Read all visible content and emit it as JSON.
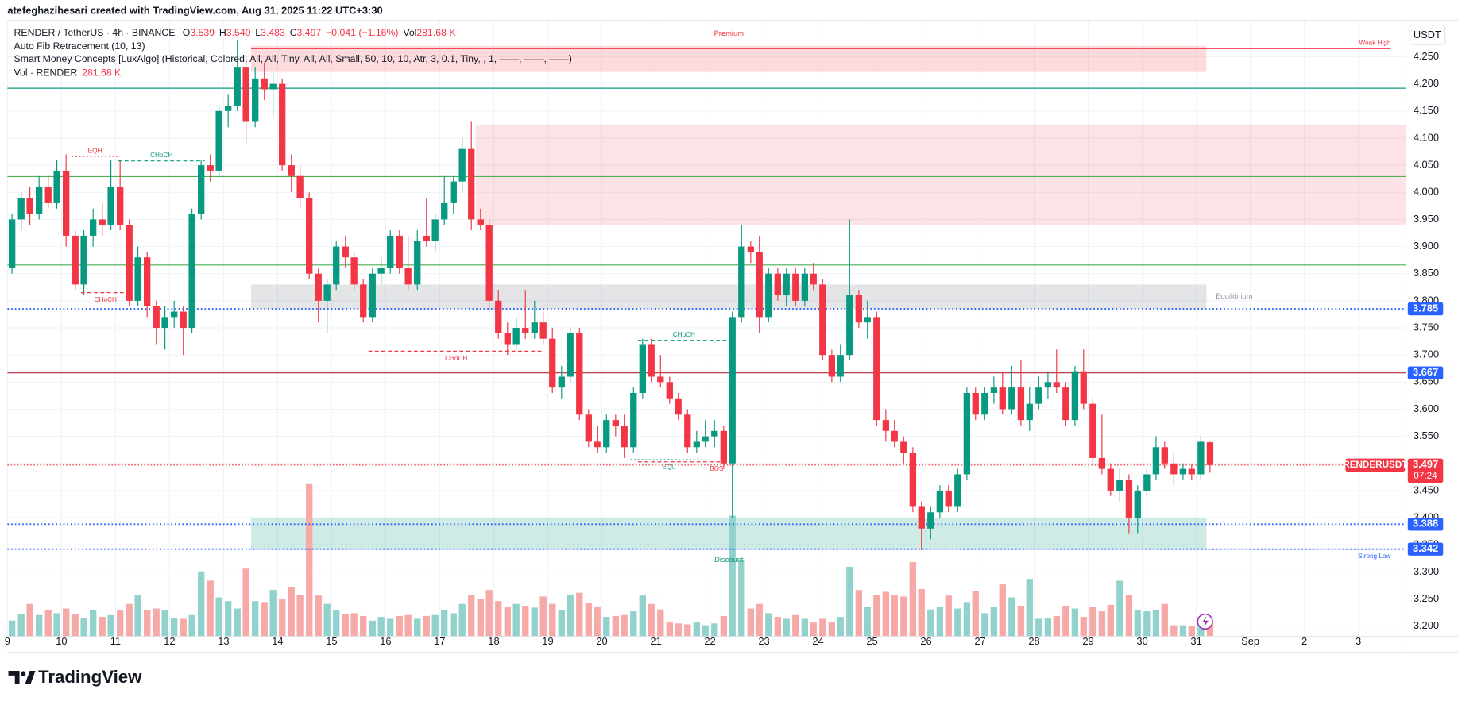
{
  "header": {
    "credit": "atefeghazihesari created with TradingView.com, Aug 31, 2025 11:22 UTC+3:30"
  },
  "footer": {
    "brand": "TradingView"
  },
  "chart_data": {
    "type": "candlestick",
    "legend": {
      "symbol": "RENDER / TetherUS · 4h · BINANCE",
      "o": "O",
      "open": "3.539",
      "h": "H",
      "high": "3.540",
      "l": "L",
      "low": "3.483",
      "c": "C",
      "close": "3.497",
      "change": "−0.041 (−1.16%)",
      "vol": "Vol",
      "volume": "281.68 K"
    },
    "indicators": [
      "Auto Fib Retracement (10, 13)",
      "Smart Money Concepts [LuxAlgo] (Historical, Colored, All, All, Tiny, All, All, Small, 50, 10, 10, Atr, 3, 0.1, Tiny, , 1, ——, ——, ——)"
    ],
    "volume_legend": {
      "name": "Vol · RENDER",
      "value": "281.68 K"
    },
    "currency": "USDT",
    "up_color": "#089981",
    "down_color": "#f23645",
    "volume_up_color": "#92d2cc",
    "volume_down_color": "#f7a9a7",
    "grid": true,
    "xlim": [
      9,
      34.88
    ],
    "xticks": [
      9,
      10,
      11,
      12,
      13,
      14,
      15,
      16,
      17,
      18,
      19,
      20,
      21,
      22,
      23,
      24,
      25,
      26,
      27,
      28,
      29,
      30,
      31,
      {
        "value": 32,
        "label": "Sep"
      },
      {
        "value": 33,
        "label": "2"
      },
      {
        "value": 34,
        "label": "3"
      }
    ],
    "ylim": [
      3.181,
      4.317
    ],
    "yticks": [
      {
        "value": 3.2,
        "label": "3.200"
      },
      {
        "value": 3.25,
        "label": "3.250"
      },
      {
        "value": 3.3,
        "label": "3.300"
      },
      {
        "value": 3.35,
        "label": "3.350"
      },
      {
        "value": 3.4,
        "label": "3.400"
      },
      {
        "value": 3.45,
        "label": "3.450"
      },
      {
        "value": 3.5,
        "label": "3.500"
      },
      {
        "value": 3.55,
        "label": "3.550"
      },
      {
        "value": 3.6,
        "label": "3.600"
      },
      {
        "value": 3.65,
        "label": "3.650"
      },
      {
        "value": 3.7,
        "label": "3.700"
      },
      {
        "value": 3.75,
        "label": "3.750"
      },
      {
        "value": 3.8,
        "label": "3.800"
      },
      {
        "value": 3.85,
        "label": "3.850"
      },
      {
        "value": 3.9,
        "label": "3.900"
      },
      {
        "value": 3.95,
        "label": "3.950"
      },
      {
        "value": 4.0,
        "label": "4.000"
      },
      {
        "value": 4.05,
        "label": "4.050"
      },
      {
        "value": 4.1,
        "label": "4.100"
      },
      {
        "value": 4.15,
        "label": "4.150"
      },
      {
        "value": 4.2,
        "label": "4.200"
      },
      {
        "value": 4.25,
        "label": "4.250"
      }
    ],
    "vlim": [
      0,
      13260
    ],
    "candles": [
      [
        9,
        3.86,
        3.96,
        3.85,
        3.95
      ],
      [
        9.17,
        3.95,
        4.0,
        3.93,
        3.99
      ],
      [
        9.33,
        3.99,
        4.01,
        3.94,
        3.96
      ],
      [
        9.5,
        3.96,
        4.03,
        3.95,
        4.01
      ],
      [
        9.67,
        4.01,
        4.03,
        3.97,
        3.98
      ],
      [
        9.83,
        3.98,
        4.06,
        3.97,
        4.04
      ],
      [
        10,
        4.04,
        4.07,
        3.9,
        3.92
      ],
      [
        10.17,
        3.92,
        3.93,
        3.82,
        3.83
      ],
      [
        10.33,
        3.83,
        3.93,
        3.81,
        3.92
      ],
      [
        10.5,
        3.92,
        3.97,
        3.9,
        3.95
      ],
      [
        10.67,
        3.95,
        3.98,
        3.92,
        3.94
      ],
      [
        10.83,
        3.94,
        4.06,
        3.93,
        4.01
      ],
      [
        11,
        4.01,
        4.06,
        3.93,
        3.94
      ],
      [
        11.17,
        3.94,
        3.95,
        3.79,
        3.8
      ],
      [
        11.33,
        3.8,
        3.9,
        3.79,
        3.88
      ],
      [
        11.5,
        3.88,
        3.89,
        3.77,
        3.79
      ],
      [
        11.67,
        3.79,
        3.8,
        3.72,
        3.75
      ],
      [
        11.83,
        3.75,
        3.79,
        3.71,
        3.77
      ],
      [
        12,
        3.77,
        3.8,
        3.75,
        3.78
      ],
      [
        12.17,
        3.78,
        3.79,
        3.7,
        3.75
      ],
      [
        12.33,
        3.75,
        3.97,
        3.74,
        3.96
      ],
      [
        12.5,
        3.96,
        4.06,
        3.95,
        4.05
      ],
      [
        12.67,
        4.05,
        4.07,
        4.02,
        4.04
      ],
      [
        12.83,
        4.04,
        4.16,
        4.03,
        4.15
      ],
      [
        13,
        4.15,
        4.18,
        4.12,
        4.16
      ],
      [
        13.17,
        4.16,
        4.28,
        4.15,
        4.23
      ],
      [
        13.33,
        4.23,
        4.25,
        4.09,
        4.13
      ],
      [
        13.5,
        4.13,
        4.23,
        4.12,
        4.21
      ],
      [
        13.67,
        4.21,
        4.24,
        4.17,
        4.19
      ],
      [
        13.83,
        4.19,
        4.22,
        4.14,
        4.2
      ],
      [
        14,
        4.2,
        4.21,
        4.04,
        4.05
      ],
      [
        14.17,
        4.05,
        4.07,
        4.0,
        4.03
      ],
      [
        14.33,
        4.03,
        4.05,
        3.97,
        3.99
      ],
      [
        14.5,
        3.99,
        4.0,
        3.84,
        3.85
      ],
      [
        14.67,
        3.85,
        3.86,
        3.76,
        3.8
      ],
      [
        14.83,
        3.8,
        3.84,
        3.74,
        3.83
      ],
      [
        15,
        3.83,
        3.91,
        3.82,
        3.9
      ],
      [
        15.17,
        3.9,
        3.92,
        3.86,
        3.88
      ],
      [
        15.33,
        3.88,
        3.89,
        3.82,
        3.83
      ],
      [
        15.5,
        3.83,
        3.84,
        3.76,
        3.77
      ],
      [
        15.67,
        3.77,
        3.86,
        3.76,
        3.85
      ],
      [
        15.83,
        3.85,
        3.88,
        3.83,
        3.86
      ],
      [
        16,
        3.86,
        3.93,
        3.85,
        3.92
      ],
      [
        16.17,
        3.92,
        3.93,
        3.85,
        3.86
      ],
      [
        16.33,
        3.86,
        3.92,
        3.82,
        3.83
      ],
      [
        16.5,
        3.83,
        3.93,
        3.82,
        3.91
      ],
      [
        16.67,
        3.92,
        3.99,
        3.9,
        3.91
      ],
      [
        16.83,
        3.91,
        3.96,
        3.89,
        3.95
      ],
      [
        17,
        3.95,
        4.03,
        3.94,
        3.98
      ],
      [
        17.17,
        3.98,
        4.03,
        3.96,
        4.02
      ],
      [
        17.33,
        4.02,
        4.1,
        4.0,
        4.08
      ],
      [
        17.5,
        4.08,
        4.13,
        3.93,
        3.95
      ],
      [
        17.67,
        3.95,
        3.97,
        3.93,
        3.94
      ],
      [
        17.83,
        3.94,
        3.95,
        3.78,
        3.8
      ],
      [
        18,
        3.8,
        3.82,
        3.73,
        3.74
      ],
      [
        18.17,
        3.74,
        3.76,
        3.7,
        3.72
      ],
      [
        18.33,
        3.72,
        3.77,
        3.71,
        3.75
      ],
      [
        18.5,
        3.75,
        3.82,
        3.73,
        3.74
      ],
      [
        18.67,
        3.74,
        3.8,
        3.73,
        3.76
      ],
      [
        18.83,
        3.76,
        3.78,
        3.72,
        3.73
      ],
      [
        19,
        3.73,
        3.75,
        3.63,
        3.64
      ],
      [
        19.17,
        3.64,
        3.68,
        3.62,
        3.66
      ],
      [
        19.33,
        3.66,
        3.75,
        3.65,
        3.74
      ],
      [
        19.5,
        3.74,
        3.75,
        3.58,
        3.59
      ],
      [
        19.67,
        3.59,
        3.6,
        3.53,
        3.54
      ],
      [
        19.83,
        3.54,
        3.57,
        3.52,
        3.53
      ],
      [
        20,
        3.53,
        3.59,
        3.52,
        3.58
      ],
      [
        20.17,
        3.58,
        3.59,
        3.55,
        3.57
      ],
      [
        20.33,
        3.57,
        3.59,
        3.51,
        3.53
      ],
      [
        20.5,
        3.53,
        3.64,
        3.52,
        3.63
      ],
      [
        20.67,
        3.63,
        3.73,
        3.62,
        3.72
      ],
      [
        20.83,
        3.72,
        3.73,
        3.65,
        3.66
      ],
      [
        21,
        3.66,
        3.7,
        3.64,
        3.65
      ],
      [
        21.17,
        3.65,
        3.66,
        3.61,
        3.62
      ],
      [
        21.33,
        3.62,
        3.63,
        3.58,
        3.59
      ],
      [
        21.5,
        3.59,
        3.6,
        3.52,
        3.53
      ],
      [
        21.67,
        3.53,
        3.56,
        3.52,
        3.54
      ],
      [
        21.83,
        3.54,
        3.58,
        3.53,
        3.55
      ],
      [
        22,
        3.55,
        3.58,
        3.53,
        3.56
      ],
      [
        22.17,
        3.56,
        3.57,
        3.49,
        3.5
      ],
      [
        22.33,
        3.5,
        3.78,
        3.4,
        3.77
      ],
      [
        22.5,
        3.77,
        3.94,
        3.76,
        3.9
      ],
      [
        22.67,
        3.9,
        3.91,
        3.87,
        3.89
      ],
      [
        22.83,
        3.89,
        3.92,
        3.74,
        3.77
      ],
      [
        23,
        3.77,
        3.86,
        3.76,
        3.85
      ],
      [
        23.17,
        3.85,
        3.86,
        3.8,
        3.81
      ],
      [
        23.33,
        3.81,
        3.86,
        3.79,
        3.85
      ],
      [
        23.5,
        3.85,
        3.86,
        3.79,
        3.8
      ],
      [
        23.67,
        3.8,
        3.86,
        3.79,
        3.85
      ],
      [
        23.83,
        3.85,
        3.87,
        3.82,
        3.83
      ],
      [
        24,
        3.83,
        3.84,
        3.69,
        3.7
      ],
      [
        24.17,
        3.7,
        3.71,
        3.65,
        3.66
      ],
      [
        24.33,
        3.66,
        3.72,
        3.65,
        3.7
      ],
      [
        24.5,
        3.7,
        3.95,
        3.69,
        3.81
      ],
      [
        24.67,
        3.81,
        3.82,
        3.75,
        3.76
      ],
      [
        24.83,
        3.76,
        3.8,
        3.73,
        3.77
      ],
      [
        25,
        3.77,
        3.78,
        3.57,
        3.58
      ],
      [
        25.17,
        3.58,
        3.6,
        3.54,
        3.56
      ],
      [
        25.33,
        3.56,
        3.58,
        3.53,
        3.54
      ],
      [
        25.5,
        3.54,
        3.55,
        3.5,
        3.52
      ],
      [
        25.67,
        3.52,
        3.53,
        3.41,
        3.42
      ],
      [
        25.83,
        3.42,
        3.43,
        3.34,
        3.38
      ],
      [
        26,
        3.38,
        3.42,
        3.36,
        3.41
      ],
      [
        26.17,
        3.41,
        3.46,
        3.4,
        3.45
      ],
      [
        26.33,
        3.45,
        3.46,
        3.41,
        3.42
      ],
      [
        26.5,
        3.42,
        3.49,
        3.41,
        3.48
      ],
      [
        26.67,
        3.48,
        3.64,
        3.47,
        3.63
      ],
      [
        26.83,
        3.63,
        3.64,
        3.58,
        3.59
      ],
      [
        27,
        3.59,
        3.64,
        3.58,
        3.63
      ],
      [
        27.17,
        3.63,
        3.66,
        3.61,
        3.64
      ],
      [
        27.33,
        3.64,
        3.67,
        3.59,
        3.6
      ],
      [
        27.5,
        3.6,
        3.68,
        3.59,
        3.64
      ],
      [
        27.67,
        3.64,
        3.69,
        3.57,
        3.58
      ],
      [
        27.83,
        3.58,
        3.64,
        3.56,
        3.61
      ],
      [
        28,
        3.61,
        3.66,
        3.6,
        3.64
      ],
      [
        28.17,
        3.64,
        3.67,
        3.62,
        3.65
      ],
      [
        28.33,
        3.65,
        3.71,
        3.63,
        3.64
      ],
      [
        28.5,
        3.64,
        3.65,
        3.57,
        3.58
      ],
      [
        28.67,
        3.58,
        3.68,
        3.57,
        3.67
      ],
      [
        28.83,
        3.67,
        3.71,
        3.6,
        3.61
      ],
      [
        29,
        3.61,
        3.62,
        3.5,
        3.51
      ],
      [
        29.17,
        3.51,
        3.59,
        3.48,
        3.49
      ],
      [
        29.33,
        3.49,
        3.5,
        3.44,
        3.45
      ],
      [
        29.5,
        3.45,
        3.49,
        3.43,
        3.47
      ],
      [
        29.67,
        3.47,
        3.48,
        3.37,
        3.4
      ],
      [
        29.83,
        3.4,
        3.46,
        3.37,
        3.45
      ],
      [
        30,
        3.45,
        3.49,
        3.44,
        3.48
      ],
      [
        30.17,
        3.48,
        3.55,
        3.47,
        3.53
      ],
      [
        30.33,
        3.53,
        3.54,
        3.49,
        3.5
      ],
      [
        30.5,
        3.5,
        3.52,
        3.46,
        3.48
      ],
      [
        30.67,
        3.48,
        3.5,
        3.47,
        3.49
      ],
      [
        30.83,
        3.49,
        3.5,
        3.47,
        3.48
      ],
      [
        31,
        3.48,
        3.55,
        3.47,
        3.54
      ],
      [
        31.17,
        3.539,
        3.54,
        3.483,
        3.497
      ]
    ],
    "volume": [
      340,
      480,
      700,
      460,
      560,
      500,
      600,
      480,
      400,
      560,
      420,
      460,
      560,
      700,
      900,
      560,
      600,
      560,
      400,
      380,
      460,
      1400,
      1200,
      840,
      760,
      600,
      1460,
      760,
      740,
      1000,
      800,
      1060,
      900,
      3280,
      880,
      700,
      560,
      480,
      500,
      440,
      340,
      420,
      380,
      440,
      460,
      380,
      440,
      460,
      560,
      500,
      700,
      900,
      800,
      1000,
      760,
      640,
      700,
      660,
      620,
      860,
      700,
      560,
      900,
      940,
      720,
      640,
      420,
      440,
      460,
      540,
      880,
      700,
      580,
      300,
      280,
      260,
      300,
      240,
      280,
      440,
      2600,
      1640,
      600,
      700,
      500,
      420,
      380,
      460,
      380,
      300,
      380,
      300,
      420,
      1500,
      1000,
      640,
      900,
      960,
      900,
      860,
      1600,
      1020,
      580,
      640,
      880,
      600,
      740,
      980,
      500,
      640,
      1120,
      840,
      660,
      1240,
      380,
      400,
      440,
      660,
      600,
      420,
      640,
      540,
      680,
      1200,
      900,
      560,
      540,
      560,
      700,
      240,
      240,
      220,
      340,
      281.68
    ],
    "zones": [
      {
        "label": "Premium",
        "top": 4.27,
        "bottom": 4.222,
        "from": 13.51,
        "to": 31.19,
        "color": "rgba(242,54,69,0.18)",
        "label_color": "#f23645",
        "label_side": "top"
      },
      {
        "top": 4.125,
        "bottom": 3.94,
        "from": 17.67,
        "to": 34.88,
        "color": "rgba(242,54,69,0.14)"
      },
      {
        "label": "Equilibrium",
        "top": 3.83,
        "bottom": 3.785,
        "from": 13.51,
        "to": 31.19,
        "color": "rgba(120,123,134,0.2)",
        "label_color": "#9598a1",
        "label_side": "right"
      },
      {
        "label": "Discount",
        "top": 3.4,
        "bottom": 3.342,
        "from": 13.51,
        "to": 31.19,
        "color": "rgba(8,153,129,0.2)",
        "label_color": "#089981",
        "label_side": "bottom"
      }
    ],
    "lines": [
      {
        "value": 4.192,
        "color": "#089981"
      },
      {
        "value": 4.029,
        "color": "#4caf50"
      },
      {
        "value": 3.866,
        "color": "#4caf50"
      }
    ],
    "structures": [
      {
        "label": "Weak High",
        "value": 4.265,
        "from": 13.51,
        "to": 34.6,
        "color": "#f23645",
        "dash": "solid",
        "side": "above",
        "anchor": "end"
      },
      {
        "label": "EQH",
        "value": 4.066,
        "from": 10.19,
        "to": 11.05,
        "color": "#f23645",
        "dash": "dotted",
        "side": "above",
        "anchor": "middle"
      },
      {
        "label": "CHoCH",
        "value": 4.058,
        "from": 11.05,
        "to": 12.65,
        "color": "#089981",
        "dash": "dashed",
        "side": "above",
        "anchor": "middle"
      },
      {
        "label": "CHoCH",
        "value": 3.815,
        "from": 10.36,
        "to": 11.27,
        "color": "#f23645",
        "dash": "dashed",
        "side": "below",
        "anchor": "middle"
      },
      {
        "label": "CHoCH",
        "value": 3.707,
        "from": 15.68,
        "to": 18.93,
        "color": "#f23645",
        "dash": "dashed",
        "side": "below",
        "anchor": "middle"
      },
      {
        "label": "CHoCH",
        "value": 3.727,
        "from": 20.67,
        "to": 22.37,
        "color": "#089981",
        "dash": "dashed",
        "side": "above",
        "anchor": "middle"
      },
      {
        "label": "EQL",
        "value": 3.507,
        "from": 20.53,
        "to": 21.94,
        "color": "#089981",
        "dash": "dotted",
        "side": "below",
        "anchor": "middle"
      },
      {
        "label": "BOS",
        "value": 3.503,
        "from": 20.67,
        "to": 22.25,
        "color": "#f23645",
        "dash": "dashed",
        "side": "below",
        "anchor": "end"
      },
      {
        "label": "Strong Low",
        "value": 3.342,
        "from": 13.51,
        "to": 34.6,
        "color": "#2962ff",
        "dash": "dotted",
        "side": "below",
        "anchor": "end"
      }
    ],
    "axis_labels": [
      {
        "value": 3.785,
        "color": "#2962ff",
        "line_color": "#2962ff",
        "dash": "dotted"
      },
      {
        "value": 3.667,
        "color": "#2962ff",
        "line_color": "#b22833",
        "dash": "solid"
      },
      {
        "value": 3.388,
        "color": "#2962ff",
        "line_color": "#2962ff",
        "dash": "dotted"
      },
      {
        "value": 3.342,
        "color": "#2962ff",
        "line_color": "#2962ff",
        "dash": "dotted"
      }
    ],
    "last": {
      "symbol": "RENDERUSDT",
      "value": 3.497,
      "countdown": "07:24",
      "color": "#f23645"
    }
  }
}
